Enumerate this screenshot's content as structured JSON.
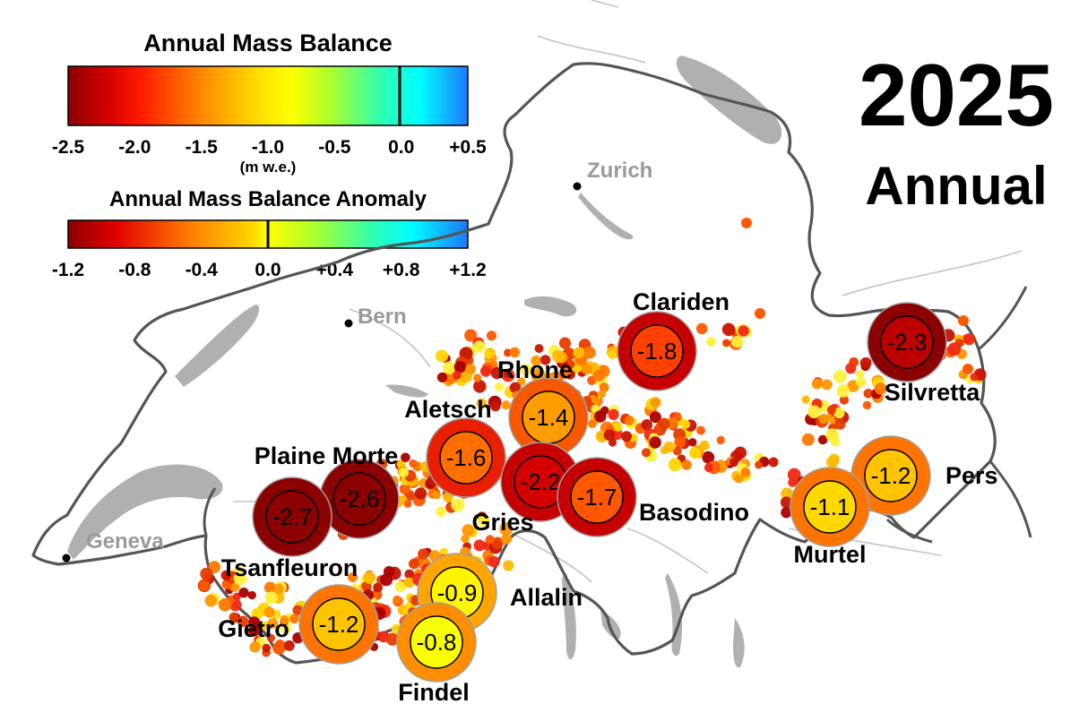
{
  "year": "2025",
  "period": "Annual",
  "legend_balance": {
    "title": "Annual Mass Balance",
    "ticks": [
      "-2.5",
      "-2.0",
      "-1.5",
      "-1.0",
      "-0.5",
      "0.0",
      "+0.5"
    ],
    "unit": "(m w.e.)"
  },
  "legend_anomaly": {
    "title": "Annual Mass Balance Anomaly",
    "ticks": [
      "-1.2",
      "-0.8",
      "-0.4",
      "0.0",
      "+0.4",
      "+0.8",
      "+1.2"
    ]
  },
  "cities": [
    {
      "name": "Zurich"
    },
    {
      "name": "Bern"
    },
    {
      "name": "Geneva"
    }
  ],
  "glaciers": [
    {
      "name": "Clariden",
      "balance": "-1.8",
      "balance_value": -1.8,
      "anomaly_value": -1.0
    },
    {
      "name": "Rhone",
      "balance": "-1.4",
      "balance_value": -1.4,
      "anomaly_value": -0.6
    },
    {
      "name": "Aletsch",
      "balance": "-1.6",
      "balance_value": -1.6,
      "anomaly_value": -0.8
    },
    {
      "name": "Plaine Morte",
      "balance": "-2.6",
      "balance_value": -2.6,
      "anomaly_value": -1.2
    },
    {
      "name": "Tsanfleuron",
      "balance": "-2.7",
      "balance_value": -2.7,
      "anomaly_value": -1.2
    },
    {
      "name": "Gries",
      "balance": "-2.2",
      "balance_value": -2.2,
      "anomaly_value": -1.0
    },
    {
      "name": "Basodino",
      "balance": "-1.7",
      "balance_value": -1.7,
      "anomaly_value": -1.0
    },
    {
      "name": "Silvretta",
      "balance": "-2.3",
      "balance_value": -2.3,
      "anomaly_value": -1.2
    },
    {
      "name": "Pers",
      "balance": "-1.2",
      "balance_value": -1.2,
      "anomaly_value": -0.5
    },
    {
      "name": "Murtel",
      "balance": "-1.1",
      "balance_value": -1.1,
      "anomaly_value": -0.5
    },
    {
      "name": "Allalin",
      "balance": "-0.9",
      "balance_value": -0.9,
      "anomaly_value": -0.3
    },
    {
      "name": "Gietro",
      "balance": "-1.2",
      "balance_value": -1.2,
      "anomaly_value": -0.5
    },
    {
      "name": "Findel",
      "balance": "-0.8",
      "balance_value": -0.8,
      "anomaly_value": -0.4
    }
  ]
}
